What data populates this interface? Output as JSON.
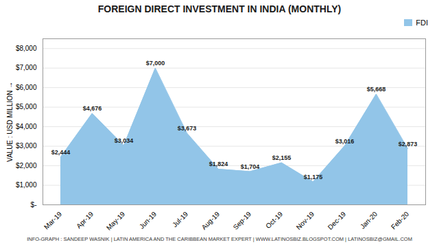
{
  "chart_data": {
    "type": "area",
    "title": "FOREIGN DIRECT INVESTMENT IN INDIA (MONTHLY)",
    "ylabel": "VALUE : USD MILLION",
    "caption": "INFO-GRAPH : SANDEEP WASNIK  |  LATIN AMERICA AND THE CARIBBEAN MARKET EXPERT  |  WWW.LATINOSBIZ.BLOGSPOT.COM  |  LATINOSBIZ@GMAIL.COM",
    "categories": [
      "Mar-19",
      "Apr-19",
      "May-19",
      "Jun-19",
      "Jul-19",
      "Aug-19",
      "Sep-19",
      "Oct-19",
      "Nov-19",
      "Dec-19",
      "Jan-20",
      "Feb-20"
    ],
    "series": [
      {
        "name": "FDI",
        "color": "#92C5E8",
        "values": [
          2444,
          4676,
          3034,
          7000,
          3673,
          1824,
          1704,
          2155,
          1175,
          3016,
          5668,
          2873
        ],
        "value_labels": [
          "$2,444",
          "$4,676",
          "$3,034",
          "$7,000",
          "$3,673",
          "$1,824",
          "$1,704",
          "$2,155",
          "$1,175",
          "$3,016",
          "$5,668",
          "$2,873"
        ]
      }
    ],
    "ylim": [
      0,
      8500
    ],
    "yticks": [
      {
        "value": 0,
        "label": "$-"
      },
      {
        "value": 1000,
        "label": "$1,000"
      },
      {
        "value": 2000,
        "label": "$2,000"
      },
      {
        "value": 3000,
        "label": "$3,000"
      },
      {
        "value": 4000,
        "label": "$4,000"
      },
      {
        "value": 5000,
        "label": "$5,000"
      },
      {
        "value": 6000,
        "label": "$6,000"
      },
      {
        "value": 7000,
        "label": "$7,000"
      },
      {
        "value": 8000,
        "label": "$8,000"
      }
    ],
    "grid": true,
    "legend": "upper right",
    "data_labels": true
  }
}
